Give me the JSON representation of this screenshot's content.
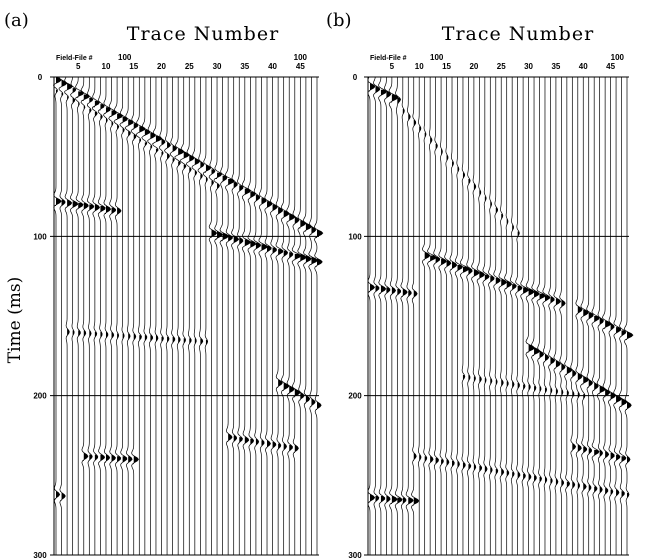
{
  "figure": {
    "ylabel": "Time (ms)"
  },
  "chart_data": [
    {
      "type": "seismic_wiggle",
      "panel_label": "(a)",
      "title": "Trace Number",
      "header_label": "Field-File #",
      "field_file": "100",
      "field_file_end": "100",
      "x_ticks": [
        5,
        10,
        15,
        20,
        25,
        30,
        35,
        40,
        45
      ],
      "y_ticks": [
        0,
        100,
        200,
        300
      ],
      "trace_count": 48,
      "ylim": [
        0,
        300
      ],
      "events": [
        {
          "trace_start": 1,
          "trace_end": 48,
          "time_start": 2,
          "time_end": 98,
          "strength": 1.0
        },
        {
          "trace_start": 1,
          "trace_end": 30,
          "time_start": 8,
          "time_end": 68,
          "strength": 0.5
        },
        {
          "trace_start": 1,
          "trace_end": 12,
          "time_start": 78,
          "time_end": 84,
          "strength": 0.9
        },
        {
          "trace_start": 29,
          "trace_end": 48,
          "time_start": 98,
          "time_end": 116,
          "strength": 1.0
        },
        {
          "trace_start": 3,
          "trace_end": 28,
          "time_start": 160,
          "time_end": 166,
          "strength": 0.4
        },
        {
          "trace_start": 41,
          "trace_end": 48,
          "time_start": 192,
          "time_end": 206,
          "strength": 1.0
        },
        {
          "trace_start": 32,
          "trace_end": 44,
          "time_start": 226,
          "time_end": 233,
          "strength": 0.7
        },
        {
          "trace_start": 6,
          "trace_end": 15,
          "time_start": 238,
          "time_end": 240,
          "strength": 0.8
        },
        {
          "trace_start": 1,
          "trace_end": 2,
          "time_start": 262,
          "time_end": 263,
          "strength": 0.8
        }
      ]
    },
    {
      "type": "seismic_wiggle",
      "panel_label": "(b)",
      "title": "Trace Number",
      "header_label": "Field-File #",
      "field_file": "100",
      "field_file_end": "100",
      "x_ticks": [
        5,
        10,
        15,
        20,
        25,
        30,
        35,
        40,
        45
      ],
      "y_ticks": [
        0,
        100,
        200,
        300
      ],
      "trace_count": 48,
      "ylim": [
        0,
        300
      ],
      "events": [
        {
          "trace_start": 1,
          "trace_end": 6,
          "time_start": 6,
          "time_end": 14,
          "strength": 0.9
        },
        {
          "trace_start": 5,
          "trace_end": 28,
          "time_start": 14,
          "time_end": 98,
          "strength": 0.35
        },
        {
          "trace_start": 1,
          "trace_end": 9,
          "time_start": 132,
          "time_end": 136,
          "strength": 0.8
        },
        {
          "trace_start": 11,
          "trace_end": 36,
          "time_start": 112,
          "time_end": 142,
          "strength": 1.0
        },
        {
          "trace_start": 39,
          "trace_end": 48,
          "time_start": 146,
          "time_end": 162,
          "strength": 1.0
        },
        {
          "trace_start": 30,
          "trace_end": 48,
          "time_start": 170,
          "time_end": 206,
          "strength": 1.0
        },
        {
          "trace_start": 18,
          "trace_end": 40,
          "time_start": 188,
          "time_end": 200,
          "strength": 0.35
        },
        {
          "trace_start": 38,
          "trace_end": 48,
          "time_start": 232,
          "time_end": 240,
          "strength": 0.8
        },
        {
          "trace_start": 9,
          "trace_end": 48,
          "time_start": 238,
          "time_end": 262,
          "strength": 0.5
        },
        {
          "trace_start": 1,
          "trace_end": 9,
          "time_start": 264,
          "time_end": 266,
          "strength": 0.9
        }
      ]
    }
  ]
}
